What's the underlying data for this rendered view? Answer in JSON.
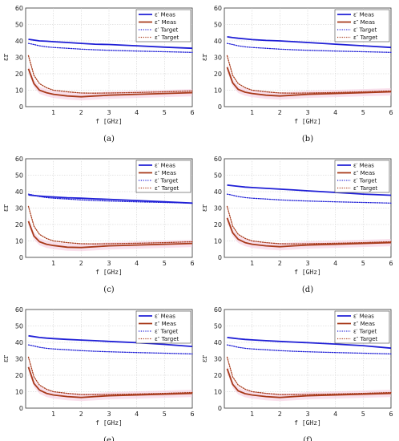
{
  "figure": {
    "legend_labels": [
      "ε′ Meas",
      "ε″ Meas",
      "ε′ Target",
      "ε″ Target"
    ],
    "colors": {
      "meas_real": "#1f1fd6",
      "meas_imag": "#a83a1a",
      "target_real": "#1f1fd6",
      "target_imag": "#a83a1a",
      "shade": "#f4c6dc"
    }
  },
  "chart_data": [
    {
      "type": "line",
      "caption": "(a)",
      "xlabel": "f [GHz]",
      "ylabel": "εr",
      "xlim": [
        0,
        6
      ],
      "ylim": [
        0,
        60
      ],
      "xticks": [
        1,
        2,
        3,
        4,
        5,
        6
      ],
      "yticks": [
        0,
        10,
        20,
        30,
        40,
        50,
        60
      ],
      "grid": true,
      "legend_position": "top-right",
      "x": [
        0.1,
        0.3,
        0.5,
        0.75,
        1.0,
        1.5,
        2.0,
        2.5,
        3.0,
        4.0,
        5.0,
        6.0
      ],
      "series": [
        {
          "name": "ε′ Meas",
          "style": "solid",
          "values": [
            41.0,
            40.5,
            40.0,
            39.8,
            39.5,
            39.0,
            38.5,
            38.0,
            37.8,
            37.0,
            36.2,
            35.5
          ]
        },
        {
          "name": "ε″ Meas",
          "style": "solid",
          "values": [
            23.0,
            14.0,
            10.0,
            8.5,
            7.5,
            6.5,
            6.0,
            6.5,
            7.0,
            7.5,
            8.0,
            8.5
          ]
        },
        {
          "name": "ε′ Target",
          "style": "dotted",
          "values": [
            38.5,
            37.8,
            37.0,
            36.4,
            36.0,
            35.5,
            35.0,
            34.6,
            34.3,
            33.8,
            33.4,
            33.0
          ]
        },
        {
          "name": "ε″ Target",
          "style": "dotted",
          "values": [
            31.0,
            19.0,
            14.0,
            11.5,
            10.0,
            9.0,
            8.3,
            8.2,
            8.3,
            8.6,
            9.0,
            9.5
          ]
        }
      ]
    },
    {
      "type": "line",
      "caption": "(b)",
      "xlabel": "f [GHz]",
      "ylabel": "εr",
      "xlim": [
        0,
        6
      ],
      "ylim": [
        0,
        60
      ],
      "xticks": [
        1,
        2,
        3,
        4,
        5,
        6
      ],
      "yticks": [
        0,
        10,
        20,
        30,
        40,
        50,
        60
      ],
      "grid": true,
      "legend_position": "top-right",
      "x": [
        0.1,
        0.3,
        0.5,
        0.75,
        1.0,
        1.5,
        2.0,
        2.5,
        3.0,
        4.0,
        5.0,
        6.0
      ],
      "series": [
        {
          "name": "ε′ Meas",
          "style": "solid",
          "values": [
            42.5,
            42.0,
            41.6,
            41.2,
            40.8,
            40.3,
            40.0,
            39.5,
            39.0,
            38.0,
            37.0,
            36.0
          ]
        },
        {
          "name": "ε″ Meas",
          "style": "solid",
          "values": [
            24.0,
            14.5,
            10.5,
            8.8,
            8.0,
            7.0,
            6.5,
            7.0,
            7.5,
            8.0,
            8.5,
            9.0
          ]
        },
        {
          "name": "ε′ Target",
          "style": "dotted",
          "values": [
            38.5,
            37.8,
            37.0,
            36.4,
            36.0,
            35.5,
            35.0,
            34.6,
            34.3,
            33.8,
            33.4,
            33.0
          ]
        },
        {
          "name": "ε″ Target",
          "style": "dotted",
          "values": [
            31.0,
            19.0,
            14.0,
            11.5,
            10.0,
            9.0,
            8.3,
            8.2,
            8.3,
            8.6,
            9.0,
            9.5
          ]
        }
      ]
    },
    {
      "type": "line",
      "caption": "(c)",
      "xlabel": "f [GHz]",
      "ylabel": "εr",
      "xlim": [
        0,
        6
      ],
      "ylim": [
        0,
        60
      ],
      "xticks": [
        1,
        2,
        3,
        4,
        5,
        6
      ],
      "yticks": [
        0,
        10,
        20,
        30,
        40,
        50,
        60
      ],
      "grid": true,
      "legend_position": "top-right",
      "x": [
        0.1,
        0.3,
        0.5,
        0.75,
        1.0,
        1.5,
        2.0,
        2.5,
        3.0,
        4.0,
        5.0,
        6.0
      ],
      "series": [
        {
          "name": "ε′ Meas",
          "style": "solid",
          "values": [
            38.0,
            37.6,
            37.3,
            37.0,
            36.8,
            36.3,
            36.0,
            35.6,
            35.3,
            34.6,
            33.8,
            33.0
          ]
        },
        {
          "name": "ε″ Meas",
          "style": "solid",
          "values": [
            22.0,
            13.0,
            9.5,
            8.0,
            7.2,
            6.2,
            6.0,
            6.5,
            7.0,
            7.5,
            8.0,
            8.5
          ]
        },
        {
          "name": "ε′ Target",
          "style": "dotted",
          "values": [
            38.5,
            37.8,
            37.0,
            36.4,
            36.0,
            35.5,
            35.0,
            34.6,
            34.3,
            33.8,
            33.4,
            33.0
          ]
        },
        {
          "name": "ε″ Target",
          "style": "dotted",
          "values": [
            31.0,
            19.0,
            14.0,
            11.5,
            10.0,
            9.0,
            8.3,
            8.2,
            8.3,
            8.6,
            9.0,
            9.5
          ]
        }
      ]
    },
    {
      "type": "line",
      "caption": "(d)",
      "xlabel": "f [GHz]",
      "ylabel": "εr",
      "xlim": [
        0,
        6
      ],
      "ylim": [
        0,
        60
      ],
      "xticks": [
        1,
        2,
        3,
        4,
        5,
        6
      ],
      "yticks": [
        0,
        10,
        20,
        30,
        40,
        50,
        60
      ],
      "grid": true,
      "legend_position": "top-right",
      "x": [
        0.1,
        0.3,
        0.5,
        0.75,
        1.0,
        1.5,
        2.0,
        2.5,
        3.0,
        4.0,
        5.0,
        6.0
      ],
      "series": [
        {
          "name": "ε′ Meas",
          "style": "solid",
          "values": [
            44.0,
            43.6,
            43.2,
            42.8,
            42.5,
            42.0,
            41.5,
            41.0,
            40.5,
            39.5,
            38.5,
            37.8
          ]
        },
        {
          "name": "ε″ Meas",
          "style": "solid",
          "values": [
            24.0,
            15.0,
            11.0,
            9.0,
            8.0,
            7.0,
            6.5,
            7.0,
            7.5,
            8.0,
            8.5,
            9.0
          ]
        },
        {
          "name": "ε′ Target",
          "style": "dotted",
          "values": [
            38.5,
            37.8,
            37.0,
            36.4,
            36.0,
            35.5,
            35.0,
            34.6,
            34.3,
            33.8,
            33.4,
            33.0
          ]
        },
        {
          "name": "ε″ Target",
          "style": "dotted",
          "values": [
            31.0,
            19.0,
            14.0,
            11.5,
            10.0,
            9.0,
            8.3,
            8.2,
            8.3,
            8.6,
            9.0,
            9.5
          ]
        }
      ]
    },
    {
      "type": "line",
      "caption": "(e)",
      "xlabel": "f [GHz]",
      "ylabel": "εr",
      "xlim": [
        0,
        6
      ],
      "ylim": [
        0,
        60
      ],
      "xticks": [
        1,
        2,
        3,
        4,
        5,
        6
      ],
      "yticks": [
        0,
        10,
        20,
        30,
        40,
        50,
        60
      ],
      "grid": true,
      "legend_position": "top-right",
      "x": [
        0.1,
        0.3,
        0.5,
        0.75,
        1.0,
        1.5,
        2.0,
        2.5,
        3.0,
        4.0,
        5.0,
        6.0
      ],
      "series": [
        {
          "name": "ε′ Meas",
          "style": "solid",
          "values": [
            44.0,
            43.5,
            43.0,
            42.6,
            42.3,
            41.8,
            41.4,
            41.0,
            40.6,
            39.8,
            38.8,
            37.5
          ]
        },
        {
          "name": "ε″ Meas",
          "style": "solid",
          "values": [
            25.0,
            15.0,
            11.0,
            9.0,
            8.0,
            7.0,
            6.5,
            7.0,
            7.5,
            8.0,
            8.5,
            9.0
          ]
        },
        {
          "name": "ε′ Target",
          "style": "dotted",
          "values": [
            38.5,
            37.8,
            37.0,
            36.4,
            36.0,
            35.5,
            35.0,
            34.6,
            34.3,
            33.8,
            33.4,
            33.0
          ]
        },
        {
          "name": "ε″ Target",
          "style": "dotted",
          "values": [
            31.0,
            19.0,
            14.0,
            11.5,
            10.0,
            9.0,
            8.3,
            8.2,
            8.3,
            8.6,
            9.0,
            9.5
          ]
        }
      ]
    },
    {
      "type": "line",
      "caption": "(f)",
      "xlabel": "f [GHz]",
      "ylabel": "εr",
      "xlim": [
        0,
        6
      ],
      "ylim": [
        0,
        60
      ],
      "xticks": [
        1,
        2,
        3,
        4,
        5,
        6
      ],
      "yticks": [
        0,
        10,
        20,
        30,
        40,
        50,
        60
      ],
      "grid": true,
      "legend_position": "top-right",
      "x": [
        0.1,
        0.3,
        0.5,
        0.75,
        1.0,
        1.5,
        2.0,
        2.5,
        3.0,
        4.0,
        5.0,
        6.0
      ],
      "series": [
        {
          "name": "ε′ Meas",
          "style": "solid",
          "values": [
            43.0,
            42.6,
            42.2,
            41.8,
            41.5,
            41.0,
            40.6,
            40.2,
            39.8,
            39.0,
            38.0,
            36.5
          ]
        },
        {
          "name": "ε″ Meas",
          "style": "solid",
          "values": [
            24.0,
            14.5,
            10.5,
            8.8,
            8.0,
            7.0,
            6.5,
            7.0,
            7.5,
            8.0,
            8.5,
            9.0
          ]
        },
        {
          "name": "ε′ Target",
          "style": "dotted",
          "values": [
            38.5,
            37.8,
            37.0,
            36.4,
            36.0,
            35.5,
            35.0,
            34.6,
            34.3,
            33.8,
            33.4,
            33.0
          ]
        },
        {
          "name": "ε″ Target",
          "style": "dotted",
          "values": [
            31.0,
            19.0,
            14.0,
            11.5,
            10.0,
            9.0,
            8.3,
            8.2,
            8.3,
            8.6,
            9.0,
            9.5
          ]
        }
      ]
    }
  ]
}
